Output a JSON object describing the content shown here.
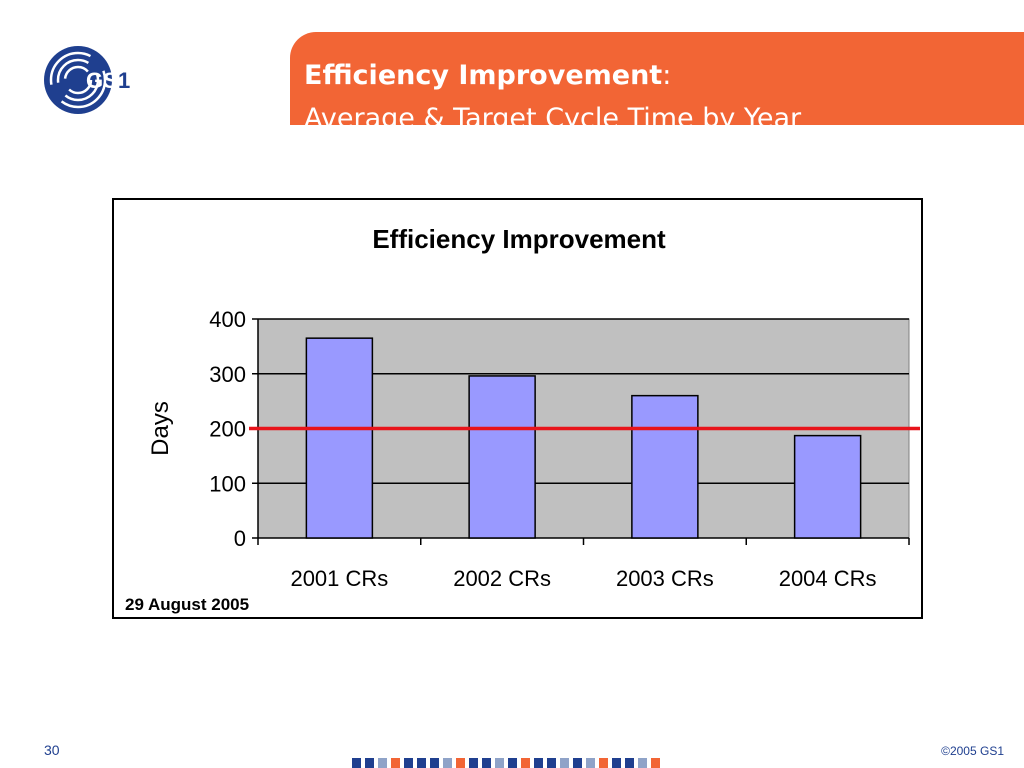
{
  "slide": {
    "title_bold": "Efficiency Improvement",
    "title_colon": ":",
    "subtitle": "Average & Target Cycle Time by Year",
    "date": "29 August 2005",
    "page_number": "30",
    "copyright": "©2005 GS1",
    "logo_text": "GS1"
  },
  "colors": {
    "banner": "#f26535",
    "bar_fill": "#9999ff",
    "plot_bg": "#c0c0c0",
    "target_line": "#e8141b",
    "brand_blue": "#1f3f8f",
    "footer_pattern": [
      "#1f3f8f",
      "#1f3f8f",
      "#8fa3c8",
      "#f26535",
      "#1f3f8f",
      "#1f3f8f",
      "#1f3f8f",
      "#8fa3c8",
      "#f26535",
      "#1f3f8f",
      "#1f3f8f",
      "#8fa3c8",
      "#1f3f8f",
      "#f26535",
      "#1f3f8f",
      "#1f3f8f",
      "#8fa3c8",
      "#1f3f8f",
      "#8fa3c8",
      "#f26535",
      "#1f3f8f",
      "#1f3f8f",
      "#8fa3c8",
      "#f26535"
    ]
  },
  "chart_data": {
    "type": "bar",
    "title": "Efficiency Improvement",
    "xlabel": "",
    "ylabel": "Days",
    "categories": [
      "2001 CRs",
      "2002 CRs",
      "2003 CRs",
      "2004 CRs"
    ],
    "values": [
      365,
      296,
      260,
      187
    ],
    "target": 200,
    "ylim": [
      0,
      400
    ],
    "yticks": [
      0,
      100,
      200,
      300,
      400
    ],
    "grid": true,
    "legend": "none"
  }
}
